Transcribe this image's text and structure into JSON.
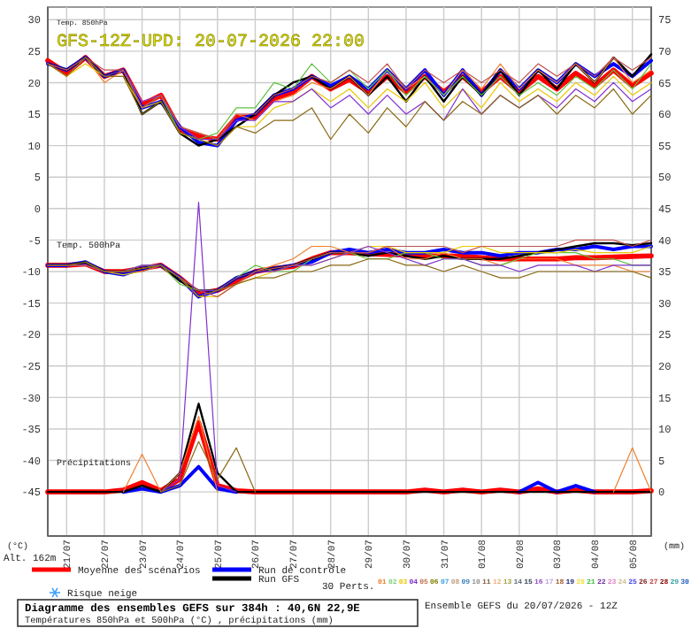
{
  "chart_data": {
    "type": "line",
    "title": "Diagramme des ensembles GEFS sur 384h : 40,6N 22,9E",
    "subtitle": "Températures 850hPa et 500hPa (°C) , précipitations (mm)",
    "x": [
      "2026-07-20T12:00",
      "2026-07-21T00:00",
      "2026-07-21T12:00",
      "2026-07-22T00:00",
      "2026-07-22T12:00",
      "2026-07-23T00:00",
      "2026-07-23T12:00",
      "2026-07-24T00:00",
      "2026-07-24T12:00",
      "2026-07-25T00:00",
      "2026-07-25T12:00",
      "2026-07-26T00:00",
      "2026-07-26T12:00",
      "2026-07-27T00:00",
      "2026-07-27T12:00",
      "2026-07-28T00:00",
      "2026-07-28T12:00",
      "2026-07-29T00:00",
      "2026-07-29T12:00",
      "2026-07-30T00:00",
      "2026-07-30T12:00",
      "2026-07-31T00:00",
      "2026-07-31T12:00",
      "2026-08-01T00:00",
      "2026-08-01T12:00",
      "2026-08-02T00:00",
      "2026-08-02T12:00",
      "2026-08-03T00:00",
      "2026-08-03T12:00",
      "2026-08-04T00:00",
      "2026-08-04T12:00",
      "2026-08-05T00:00",
      "2026-08-05T12:00"
    ],
    "xlim": [
      "2026-07-20T12:00",
      "2026-08-05T12:00"
    ],
    "xticks": [
      {
        "value": "2026-07-21",
        "label": "21/07"
      },
      {
        "value": "2026-07-22",
        "label": "22/07"
      },
      {
        "value": "2026-07-23",
        "label": "23/07"
      },
      {
        "value": "2026-07-24",
        "label": "24/07"
      },
      {
        "value": "2026-07-25",
        "label": "25/07"
      },
      {
        "value": "2026-07-26",
        "label": "26/07"
      },
      {
        "value": "2026-07-27",
        "label": "27/07"
      },
      {
        "value": "2026-07-28",
        "label": "28/07"
      },
      {
        "value": "2026-07-29",
        "label": "29/07"
      },
      {
        "value": "2026-07-30",
        "label": "30/07"
      },
      {
        "value": "2026-07-31",
        "label": "31/07"
      },
      {
        "value": "2026-08-01",
        "label": "01/08"
      },
      {
        "value": "2026-08-02",
        "label": "02/08"
      },
      {
        "value": "2026-08-03",
        "label": "03/08"
      },
      {
        "value": "2026-08-04",
        "label": "04/08"
      },
      {
        "value": "2026-08-05",
        "label": "05/08"
      }
    ],
    "ylim": [
      -52,
      32
    ],
    "yticks": [
      -45,
      -40,
      -35,
      -30,
      -25,
      -20,
      -15,
      -10,
      -5,
      0,
      5,
      10,
      15,
      20,
      25,
      30
    ],
    "y2lim": [
      -7,
      77
    ],
    "y2ticks": [
      0,
      5,
      10,
      15,
      20,
      25,
      30,
      35,
      40,
      45,
      50,
      55,
      60,
      65,
      70,
      75
    ],
    "grid": true,
    "legend": "bottom",
    "annotations": [
      "GFS-12Z-UPD: 20-07-2026 22:00",
      "Temp. 850hPa",
      "Temp. 500hPa",
      "Précipitations",
      "(°C)",
      "(mm)",
      "Alt. 162m",
      "Risque neige",
      "30 Perts.",
      "Ensemble GEFS du 20/07/2026 - 12Z",
      "01",
      "02",
      "03",
      "04",
      "05",
      "06",
      "07",
      "08",
      "09",
      "10",
      "11",
      "12",
      "13",
      "14",
      "15",
      "16",
      "17",
      "18",
      "19",
      "20",
      "21",
      "22",
      "23",
      "24",
      "25",
      "26",
      "27",
      "28",
      "29",
      "30"
    ],
    "series": [
      {
        "color": "#f08030",
        "values": [
          23,
          21,
          24,
          20,
          22,
          17,
          18,
          13,
          12,
          11,
          15,
          14,
          17,
          18,
          20,
          19,
          21,
          18,
          22,
          19,
          21,
          18,
          22,
          19,
          23,
          19,
          22,
          20,
          23,
          20,
          24,
          20,
          22
        ]
      },
      {
        "color": "#60c040",
        "values": [
          null,
          null,
          null,
          null,
          22,
          16,
          18,
          12,
          11,
          12,
          16,
          16,
          20,
          19,
          23,
          20,
          22,
          19,
          22,
          18,
          21,
          18,
          21,
          18,
          21,
          18,
          20,
          18,
          21,
          19,
          22,
          19,
          23
        ]
      },
      {
        "color": "#e8c800",
        "values": [
          23,
          21,
          23,
          21,
          21,
          16,
          17,
          12,
          11,
          10,
          13,
          13,
          16,
          17,
          19,
          17,
          19,
          16,
          19,
          17,
          20,
          16,
          19,
          16,
          20,
          17,
          19,
          17,
          20,
          18,
          21,
          18,
          20
        ]
      },
      {
        "color": "#8030d0",
        "values": [
          23,
          22,
          24,
          21,
          22,
          17,
          18,
          13,
          11,
          11,
          14,
          14,
          17,
          17,
          19,
          16,
          18,
          15,
          18,
          15,
          17,
          14,
          19,
          15,
          18,
          16,
          18,
          16,
          19,
          17,
          20,
          17,
          19
        ]
      },
      {
        "color": "#c05050",
        "values": [
          23,
          22,
          24,
          22,
          22,
          16,
          18,
          13,
          12,
          11,
          15,
          15,
          18,
          19,
          21,
          20,
          22,
          20,
          23,
          19,
          22,
          20,
          22,
          20,
          22,
          20,
          23,
          21,
          23,
          21,
          24,
          22,
          24
        ]
      },
      {
        "color": "#8b6914",
        "values": [
          23,
          21,
          24,
          21,
          21,
          15,
          17,
          12,
          11,
          10,
          13,
          12,
          14,
          14,
          16,
          11,
          15,
          12,
          16,
          13,
          17,
          14,
          17,
          15,
          18,
          16,
          18,
          15,
          18,
          16,
          19,
          15,
          18
        ]
      },
      {
        "color": "#f08030",
        "values": [
          -9,
          -9,
          -9,
          -10,
          -10,
          -9.5,
          -9,
          -11,
          -14,
          -13,
          -12,
          -10,
          -9,
          -8,
          -6,
          -6,
          -7,
          -7,
          -6,
          -8,
          -8,
          -7,
          -8,
          -8,
          -9,
          -8,
          -8,
          -8,
          -9,
          -9,
          -9,
          -10,
          -10
        ]
      },
      {
        "color": "#60c040",
        "values": [
          null,
          null,
          null,
          null,
          -10,
          -9,
          -9,
          -12,
          -13,
          -13,
          -11,
          -9,
          -10,
          -10,
          -8,
          -7,
          -7,
          -8,
          -8,
          -7,
          -7,
          -8,
          -8,
          -9,
          -9,
          -8,
          -7,
          -7,
          -7,
          -8,
          -8,
          -9,
          -9
        ]
      },
      {
        "color": "#e8c800",
        "values": [
          null,
          null,
          -8.5,
          -10,
          -10.5,
          -10,
          -9,
          -11,
          -14,
          -14,
          -12,
          -11,
          -10,
          -9,
          -9,
          -8,
          -7,
          -6,
          -6,
          -7,
          -7,
          -7,
          -6,
          -6,
          -7,
          -7,
          -7,
          -7,
          -6.5,
          -7,
          -7,
          -7,
          -6
        ]
      },
      {
        "color": "#8030d0",
        "values": [
          -9,
          -9,
          -9,
          -10,
          -10,
          -9,
          -9,
          -11,
          -13,
          -13,
          -11,
          -10,
          -10,
          -9,
          -9,
          -8,
          -7,
          -6,
          -7,
          -8,
          -9,
          -8,
          -8,
          -9,
          -9,
          -10,
          -9,
          -9,
          -9,
          -10,
          -9,
          -9,
          -9
        ]
      },
      {
        "color": "#c05050",
        "values": [
          -9,
          -9,
          -9,
          -10,
          -10,
          -10,
          -9,
          -11,
          -13,
          -14,
          -12,
          -10,
          -9.5,
          -9,
          -8,
          -7,
          -7,
          -7,
          -6,
          -6,
          -6,
          -6,
          -7,
          -6,
          -6,
          -6,
          -6,
          -6,
          -5,
          -5,
          -5,
          -6,
          -5
        ]
      },
      {
        "color": "#8b6914",
        "values": [
          -9,
          -9,
          -8.5,
          -10,
          -10,
          -9.5,
          -9,
          -11,
          -14,
          -13,
          -12,
          -11,
          -11,
          -10,
          -10,
          -9,
          -9,
          -8,
          -8,
          -9,
          -9,
          -10,
          -9,
          -10,
          -11,
          -11,
          -10,
          -10,
          -10,
          -10,
          -10,
          -10,
          -11
        ]
      },
      {
        "color": "#f08030",
        "axis": "y2",
        "values": [
          null,
          null,
          null,
          null,
          0,
          6,
          0,
          3,
          12,
          0,
          null,
          null,
          null,
          null,
          null,
          null,
          null,
          null,
          null,
          null,
          null,
          null,
          null,
          null,
          null,
          null,
          null,
          null,
          null,
          null,
          0,
          7,
          0
        ]
      },
      {
        "color": "#8030d0",
        "axis": "y2",
        "values": [
          null,
          null,
          null,
          null,
          null,
          null,
          0,
          2,
          46,
          1,
          0,
          null,
          null,
          null,
          null,
          null,
          null,
          null,
          null,
          null,
          null,
          null,
          null,
          null,
          null,
          null,
          null,
          null,
          null,
          null,
          null,
          null,
          null
        ]
      },
      {
        "color": "#8b6914",
        "axis": "y2",
        "values": [
          null,
          null,
          null,
          null,
          null,
          null,
          0,
          1,
          8,
          2,
          7,
          0,
          null,
          null,
          null,
          null,
          null,
          null,
          null,
          null,
          null,
          null,
          null,
          null,
          null,
          null,
          null,
          null,
          null,
          null,
          null,
          null,
          null
        ]
      },
      {
        "name": "Run GFS",
        "color": "#000000",
        "values": [
          23,
          22,
          24,
          21,
          22,
          15,
          17,
          12,
          10,
          11,
          13,
          15,
          18,
          20,
          21,
          19,
          21,
          18,
          21,
          17,
          21,
          17,
          21,
          18,
          22,
          18,
          22,
          19,
          23,
          20,
          24,
          21,
          24.5
        ]
      },
      {
        "color": "#000000",
        "values": [
          -9,
          -9,
          -8.5,
          -10,
          -10,
          -9.5,
          -9,
          -11.5,
          -13,
          -13,
          -11,
          -10,
          -9.5,
          -9,
          -8,
          -7,
          -7,
          -7.5,
          -7,
          -7.5,
          -8,
          -7.5,
          -8,
          -8,
          -8,
          -7.5,
          -7,
          -6.5,
          -6,
          -5.5,
          -5.5,
          -5.8,
          -5.5
        ]
      },
      {
        "color": "#000000",
        "axis": "y2",
        "values": [
          0,
          0,
          0,
          0,
          0,
          1,
          0,
          3,
          14,
          3,
          0,
          0,
          0,
          0,
          0,
          0,
          0,
          0,
          0,
          0,
          0,
          0,
          0,
          0,
          0,
          0,
          0,
          0,
          0,
          0,
          0,
          0,
          0
        ]
      },
      {
        "name": "Run de contrôle",
        "color": "#0000ff",
        "values": [
          23,
          22,
          24,
          21,
          22,
          16,
          17,
          13,
          10.5,
          10,
          14,
          15,
          18,
          19,
          21,
          19.5,
          21,
          19,
          22,
          19,
          22,
          18,
          22,
          18,
          22,
          19,
          22,
          20,
          23,
          21,
          23,
          21,
          23.5
        ]
      },
      {
        "color": "#0000ff",
        "values": [
          -9,
          -9,
          -8.5,
          -10,
          -10.5,
          -9.5,
          -9,
          -11,
          -14,
          -13,
          -11,
          -10,
          -9.5,
          -9,
          -8.5,
          -7,
          -6.5,
          -7,
          -6.5,
          -7,
          -7,
          -6.5,
          -7,
          -7,
          -7.5,
          -7,
          -7,
          -6.5,
          -6.5,
          -6,
          -6.5,
          -6,
          -6
        ]
      },
      {
        "color": "#0000ff",
        "axis": "y2",
        "values": [
          null,
          null,
          null,
          null,
          0,
          0.5,
          0,
          1,
          4,
          0.5,
          0,
          null,
          null,
          null,
          null,
          null,
          null,
          null,
          null,
          null,
          null,
          null,
          null,
          null,
          null,
          0,
          1.5,
          0,
          1,
          0,
          null,
          null,
          null
        ]
      },
      {
        "name": "Moyenne des scénarios",
        "color": "#ff0000",
        "values": [
          23.5,
          21.5,
          24,
          21,
          22,
          16.5,
          18,
          12.5,
          11.5,
          11,
          14.5,
          14.5,
          17.5,
          18.5,
          21,
          19,
          20.5,
          18.5,
          21,
          18.5,
          21,
          18.5,
          21,
          18.5,
          21,
          18.5,
          21,
          19,
          21.5,
          19.5,
          22,
          19.5,
          21.5
        ]
      },
      {
        "color": "#ff0000",
        "values": [
          -9,
          -9,
          -8.8,
          -10,
          -10,
          -9.5,
          -9,
          -11,
          -13.5,
          -13,
          -11.5,
          -10,
          -9.5,
          -9.2,
          -8,
          -7,
          -7,
          -7.2,
          -7.3,
          -7.4,
          -7.5,
          -7.5,
          -7.6,
          -7.8,
          -8,
          -8,
          -8,
          -8,
          -7.8,
          -7.8,
          -7.7,
          -7.6,
          -7.5
        ]
      },
      {
        "color": "#ff0000",
        "axis": "y2",
        "values": [
          0,
          0,
          0,
          0,
          0.3,
          1.5,
          0.2,
          2,
          11,
          1,
          0.2,
          0,
          0,
          0,
          0,
          0,
          0,
          0,
          0,
          0,
          0.3,
          0,
          0.3,
          0,
          0.3,
          0,
          0.5,
          0,
          0.3,
          0,
          0,
          0,
          0.2
        ]
      }
    ]
  }
}
